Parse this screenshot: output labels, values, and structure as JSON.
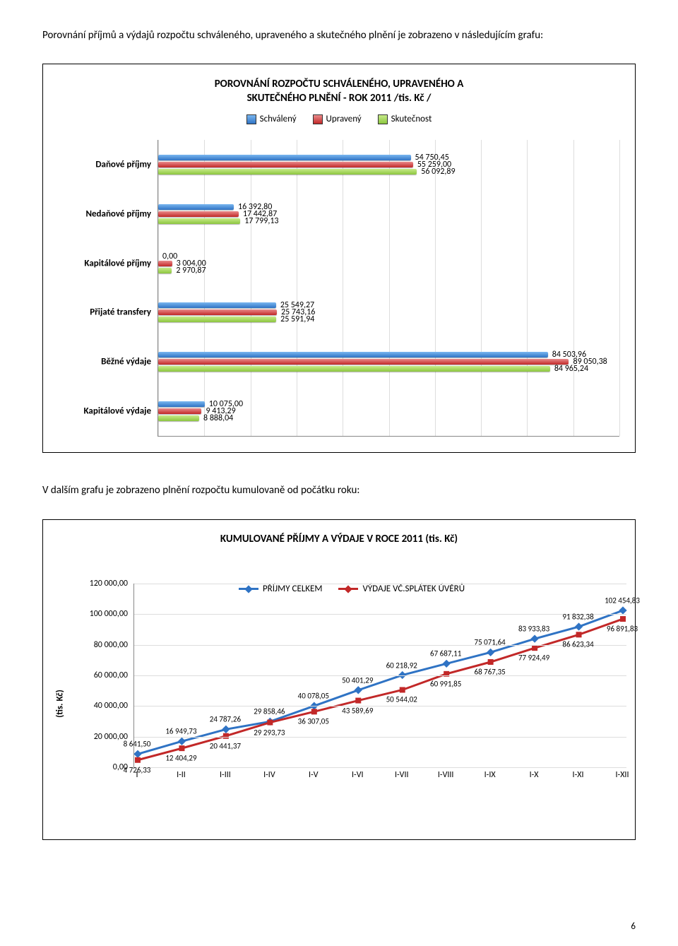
{
  "intro_text": "Porovnání příjmů a výdajů rozpočtu schváleného, upraveného a skutečného plnění je zobrazeno v následujícím grafu:",
  "hbar_chart": {
    "type": "bar",
    "orientation": "horizontal",
    "title_l1": "POROVNÁNÍ ROZPOČTU SCHVÁLENÉHO, UPRAVENÉHO A",
    "title_l2": "SKUTEČNÉHO PLNĚNÍ - ROK 2011 /tis. Kč /",
    "legend": [
      "Schválený",
      "Upravený",
      "Skutečnost"
    ],
    "series_colors": [
      "#2f73c4",
      "#c22828",
      "#8cc63f"
    ],
    "grid_color": "#dddddd",
    "axis_color": "#888888",
    "x_max": 100,
    "categories": [
      {
        "label": "Daňové příjmy",
        "values": [
          54750.45,
          55259.0,
          56092.89
        ],
        "value_labels": [
          "54 750,45",
          "55 259,00",
          "56 092,89"
        ]
      },
      {
        "label": "Nedaňové příjmy",
        "values": [
          16392.8,
          17442.87,
          17799.13
        ],
        "value_labels": [
          "16 392,80",
          "17 442,87",
          "17 799,13"
        ]
      },
      {
        "label": "Kapitálové příjmy",
        "values": [
          0.0,
          3004.0,
          2970.87
        ],
        "value_labels": [
          "0,00",
          "3 004,00",
          "2 970,87"
        ]
      },
      {
        "label": "Přijaté transfery",
        "values": [
          25549.27,
          25743.16,
          25591.94
        ],
        "value_labels": [
          "25 549,27",
          "25 743,16",
          "25 591,94"
        ]
      },
      {
        "label": "Běžné výdaje",
        "values": [
          84503.96,
          89050.38,
          84965.24
        ],
        "value_labels": [
          "84 503,96",
          "89 050,38",
          "84 965,24"
        ]
      },
      {
        "label": "Kapitálové výdaje",
        "values": [
          10075.0,
          9413.29,
          8888.04
        ],
        "value_labels": [
          "10 075,00",
          "9 413,29",
          "8 888,04"
        ]
      }
    ]
  },
  "mid_text": "V dalším grafu je zobrazeno plnění rozpočtu kumulovaně od počátku roku:",
  "line_chart": {
    "type": "line",
    "title": "KUMULOVANÉ PŘÍJMY A VÝDAJE V ROCE 2011 (tis. Kč)",
    "ylabel": "(tis. Kč)",
    "ylim": [
      0,
      120000
    ],
    "ytick_step": 20000,
    "ytick_labels": [
      "0,00",
      "20 000,00",
      "40 000,00",
      "60 000,00",
      "80 000,00",
      "100 000,00",
      "120 000,00"
    ],
    "x_labels": [
      "I",
      "I-II",
      "I-III",
      "I-IV",
      "I-V",
      "I-VI",
      "I-VII",
      "I-VIII",
      "I-IX",
      "I-X",
      "I-XI",
      "I-XII"
    ],
    "grid_color": "#dddddd",
    "series": [
      {
        "name": "PŘÍJMY CELKEM",
        "color": "#2f73c4",
        "marker": "diamond",
        "values": [
          8641.5,
          16949.73,
          24787.26,
          29858.46,
          40078.05,
          50401.29,
          60218.92,
          67687.11,
          75071.64,
          83933.83,
          91832.38,
          102454.83
        ],
        "value_labels": [
          "8 641,50",
          "16 949,73",
          "24 787,26",
          "29 858,46",
          "40 078,05",
          "50 401,29",
          "60 218,92",
          "67 687,11",
          "75 071,64",
          "83 933,83",
          "91 832,38",
          "102 454,83"
        ],
        "label_offset_y": -14
      },
      {
        "name": "VÝDAJE VČ.SPLÁTEK ÚVĚRŮ",
        "color": "#c22828",
        "marker": "square",
        "values": [
          4726.33,
          12404.29,
          20441.37,
          29293.73,
          36307.05,
          43589.69,
          50544.02,
          60991.85,
          68767.35,
          77924.49,
          86623.34,
          96891.83
        ],
        "value_labels": [
          "4 726,33",
          "12 404,29",
          "20 441,37",
          "29 293,73",
          "36 307,05",
          "43 589,69",
          "50 544,02",
          "60 991,85",
          "68 767,35",
          "77 924,49",
          "86 623,34",
          "96 891,83"
        ],
        "label_offset_y": 14
      }
    ]
  },
  "page_number": "6"
}
